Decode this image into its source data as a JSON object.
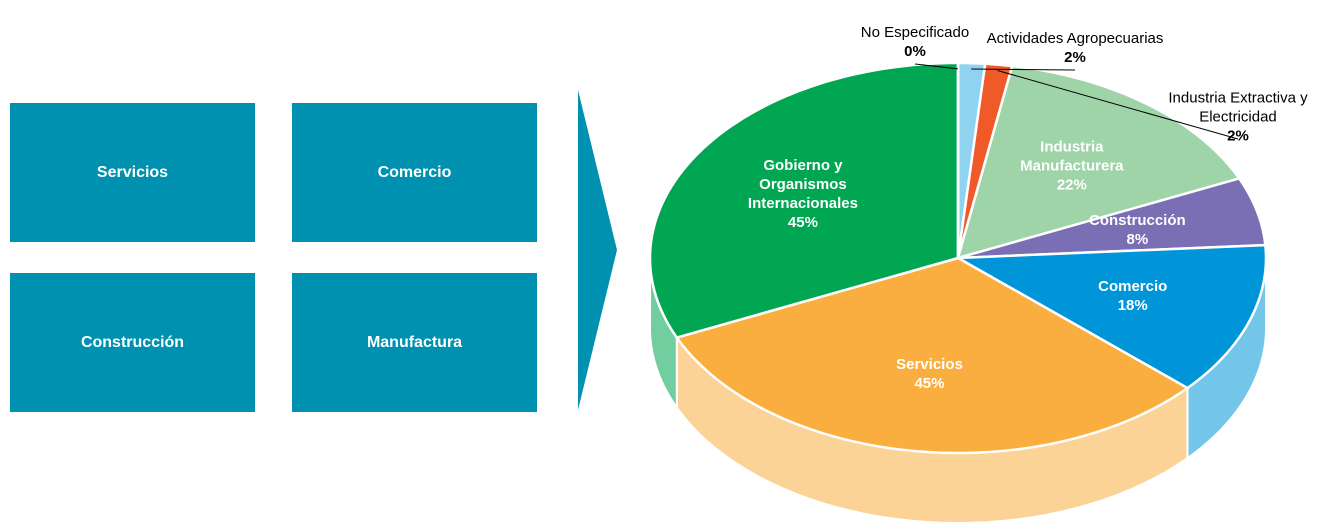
{
  "boxes": [
    "Servicios",
    "Comercio",
    "Construcción",
    "Manufactura"
  ],
  "chart_data": {
    "type": "pie",
    "categories": [
      "Actividades Agropecuarias",
      "Industria Extractiva y Electricidad",
      "Industria Manufacturera",
      "Construcción",
      "Comercio",
      "Servicios",
      "Gobierno y Organismos Internacionales",
      "No Especificado"
    ],
    "values": [
      2,
      2,
      22,
      8,
      18,
      45,
      45,
      0
    ],
    "value_labels": [
      "2%",
      "2%",
      "22%",
      "8%",
      "18%",
      "45%",
      "45%",
      "0%"
    ],
    "colors": [
      "#8fd3f0",
      "#f05a28",
      "#9ed4a8",
      "#7a6fb5",
      "#0095d9",
      "#f9ae3f",
      "#00a651",
      "#7f3f98"
    ]
  }
}
